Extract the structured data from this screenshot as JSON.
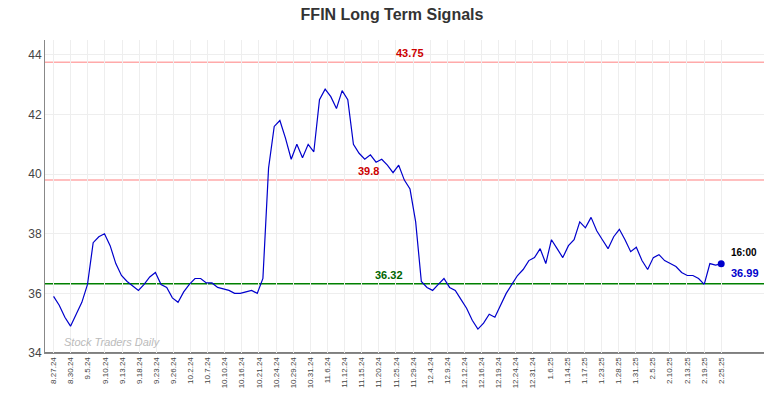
{
  "chart_data": {
    "type": "line",
    "title": "FFIN Long Term Signals",
    "title_color": "#333333",
    "color": "#0000cc",
    "values": [
      35.9,
      35.6,
      35.2,
      34.9,
      35.3,
      35.7,
      36.3,
      37.7,
      37.9,
      38.0,
      37.6,
      37.0,
      36.6,
      36.4,
      36.25,
      36.1,
      36.3,
      36.55,
      36.7,
      36.3,
      36.2,
      35.85,
      35.7,
      36.05,
      36.3,
      36.5,
      36.5,
      36.35,
      36.35,
      36.2,
      36.15,
      36.1,
      36.0,
      36.0,
      36.05,
      36.1,
      36.0,
      36.5,
      40.2,
      41.6,
      41.8,
      41.2,
      40.5,
      41.0,
      40.55,
      41.0,
      40.75,
      42.5,
      42.85,
      42.6,
      42.2,
      42.8,
      42.5,
      41.0,
      40.7,
      40.5,
      40.65,
      40.4,
      40.5,
      40.3,
      40.05,
      40.3,
      39.8,
      39.5,
      38.4,
      36.4,
      36.2,
      36.1,
      36.3,
      36.5,
      36.2,
      36.1,
      35.8,
      35.5,
      35.1,
      34.8,
      35.0,
      35.3,
      35.2,
      35.6,
      36.0,
      36.3,
      36.6,
      36.8,
      37.1,
      37.2,
      37.5,
      37.0,
      37.8,
      37.5,
      37.2,
      37.6,
      37.8,
      38.4,
      38.2,
      38.55,
      38.1,
      37.8,
      37.5,
      37.9,
      38.15,
      37.8,
      37.4,
      37.55,
      37.1,
      36.8,
      37.2,
      37.3,
      37.1,
      37.0,
      36.9,
      36.7,
      36.6,
      36.6,
      36.5,
      36.3,
      37.0,
      36.95,
      36.99
    ],
    "xlim": [
      -0.5,
      41.5
    ],
    "xticks": [
      {
        "value": 0,
        "label": "8.27.24"
      },
      {
        "value": 1,
        "label": "8.30.24"
      },
      {
        "value": 2,
        "label": "9.5.24"
      },
      {
        "value": 3,
        "label": "9.10.24"
      },
      {
        "value": 4,
        "label": "9.13.24"
      },
      {
        "value": 5,
        "label": "9.18.24"
      },
      {
        "value": 6,
        "label": "9.23.24"
      },
      {
        "value": 7,
        "label": "9.26.24"
      },
      {
        "value": 8,
        "label": "10.2.24"
      },
      {
        "value": 9,
        "label": "10.7.24"
      },
      {
        "value": 10,
        "label": "10.10.24"
      },
      {
        "value": 11,
        "label": "10.16.24"
      },
      {
        "value": 12,
        "label": "10.21.24"
      },
      {
        "value": 13,
        "label": "10.24.24"
      },
      {
        "value": 14,
        "label": "10.29.24"
      },
      {
        "value": 15,
        "label": "10.31.24"
      },
      {
        "value": 16,
        "label": "11.6.24"
      },
      {
        "value": 17,
        "label": "11.12.24"
      },
      {
        "value": 18,
        "label": "11.15.24"
      },
      {
        "value": 19,
        "label": "11.20.24"
      },
      {
        "value": 20,
        "label": "11.25.24"
      },
      {
        "value": 21,
        "label": "11.29.24"
      },
      {
        "value": 22,
        "label": "12.4.24"
      },
      {
        "value": 23,
        "label": "12.9.24"
      },
      {
        "value": 24,
        "label": "12.12.24"
      },
      {
        "value": 25,
        "label": "12.16.24"
      },
      {
        "value": 26,
        "label": "12.19.24"
      },
      {
        "value": 27,
        "label": "12.24.24"
      },
      {
        "value": 28,
        "label": "12.31.24"
      },
      {
        "value": 29,
        "label": "1.6.25"
      },
      {
        "value": 30,
        "label": "1.14.25"
      },
      {
        "value": 31,
        "label": "1.17.25"
      },
      {
        "value": 32,
        "label": "1.23.25"
      },
      {
        "value": 33,
        "label": "1.28.25"
      },
      {
        "value": 34,
        "label": "1.31.25"
      },
      {
        "value": 35,
        "label": "2.5.25"
      },
      {
        "value": 36,
        "label": "2.10.25"
      },
      {
        "value": 37,
        "label": "2.13.25"
      },
      {
        "value": 38,
        "label": "2.19.25"
      },
      {
        "value": 39,
        "label": "2.25.25"
      }
    ],
    "ylim": [
      34,
      44.5
    ],
    "yticks": [
      34,
      36,
      38,
      40,
      42,
      44
    ],
    "grid": true,
    "end_marker_color": "#0000cc",
    "reference_lines": [
      {
        "value": 43.75,
        "color": "#ffaaaa",
        "label": "43.75",
        "label_color": "#cc0000"
      },
      {
        "value": 39.8,
        "color": "#ffaaaa",
        "label": "39.8",
        "label_color": "#cc0000"
      },
      {
        "value": 36.32,
        "color": "green",
        "label": "36.32",
        "label_color": "#006600"
      },
      {
        "value": 34.0,
        "color": "#555555"
      }
    ],
    "end_labels": [
      {
        "text": "16:00",
        "color": "#000000"
      },
      {
        "text": "36.99",
        "color": "#0000cc"
      }
    ],
    "watermark": {
      "text": "Stock Traders Daily",
      "color": "#bbbbbb"
    }
  }
}
